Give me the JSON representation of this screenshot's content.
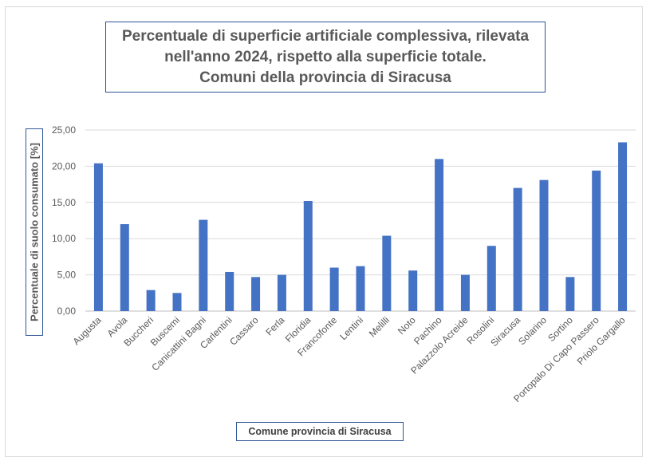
{
  "chart_data": {
    "type": "bar",
    "title": "Percentuale di superficie artificiale complessiva, rilevata nell'anno 2024, rispetto alla superficie totale. Comuni della provincia di Siracusa",
    "title_lines": [
      "Percentuale di superficie artificiale complessiva, rilevata",
      "nell'anno 2024, rispetto alla superficie totale.",
      "Comuni della provincia di Siracusa"
    ],
    "xlabel": "Comune provincia di Siracusa",
    "ylabel": "Percentuale di suolo consumato [%]",
    "ylim": [
      0,
      25
    ],
    "yticks": [
      "0,00",
      "5,00",
      "10,00",
      "15,00",
      "20,00",
      "25,00"
    ],
    "grid": true,
    "bar_color": "#4472c4",
    "categories": [
      "Augusta",
      "Avola",
      "Buccheri",
      "Buscemi",
      "Canicattini Bagni",
      "Carlentini",
      "Cassaro",
      "Ferla",
      "Floridia",
      "Francofonte",
      "Lentini",
      "Melilli",
      "Noto",
      "Pachino",
      "Palazzolo Acreide",
      "Rosolini",
      "Siracusa",
      "Solarino",
      "Sortino",
      "Portopalo Di Capo Passero",
      "Priolo Gargallo"
    ],
    "values": [
      20.4,
      12.0,
      2.9,
      2.5,
      12.6,
      5.4,
      4.7,
      5.0,
      15.2,
      6.0,
      6.2,
      10.4,
      5.6,
      21.0,
      5.0,
      9.0,
      17.0,
      18.1,
      4.7,
      19.4,
      23.3
    ]
  }
}
